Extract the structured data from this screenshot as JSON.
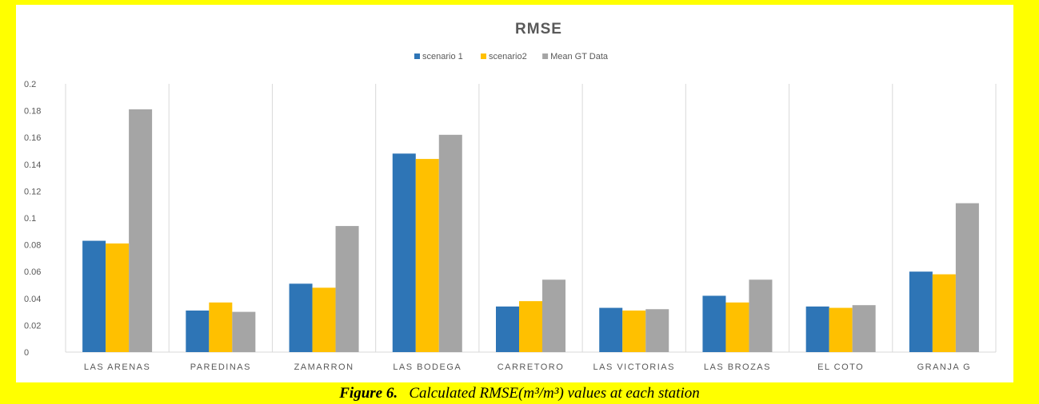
{
  "chart_data": {
    "type": "bar",
    "title": "RMSE",
    "categories": [
      "LAS ARENAS",
      "PAREDINAS",
      "ZAMARRON",
      "LAS BODEGA",
      "CARRETORO",
      "LAS VICTORIAS",
      "LAS BROZAS",
      "EL COTO",
      "GRANJA G"
    ],
    "series": [
      {
        "name": "scenario 1",
        "color": "#2e75b6",
        "values": [
          0.083,
          0.031,
          0.051,
          0.148,
          0.034,
          0.033,
          0.042,
          0.034,
          0.06
        ]
      },
      {
        "name": "scenario2",
        "color": "#ffc000",
        "values": [
          0.081,
          0.037,
          0.048,
          0.144,
          0.038,
          0.031,
          0.037,
          0.033,
          0.058
        ]
      },
      {
        "name": "Mean GT Data",
        "color": "#a5a5a5",
        "values": [
          0.181,
          0.03,
          0.094,
          0.162,
          0.054,
          0.032,
          0.054,
          0.035,
          0.111
        ]
      }
    ],
    "ylim": [
      0,
      0.2
    ],
    "yticks": [
      "0",
      "0.02",
      "0.04",
      "0.06",
      "0.08",
      "0.1",
      "0.12",
      "0.14",
      "0.16",
      "0.18",
      "0.2"
    ],
    "xlabel": "",
    "ylabel": "",
    "legend": "top-center",
    "grid": "vertical category separators"
  },
  "caption": {
    "figure_label": "Figure 6.",
    "text_before_unit": "Calculated RMSE(",
    "unit": "m³/m³",
    "text_after_unit": ") values at each station"
  }
}
